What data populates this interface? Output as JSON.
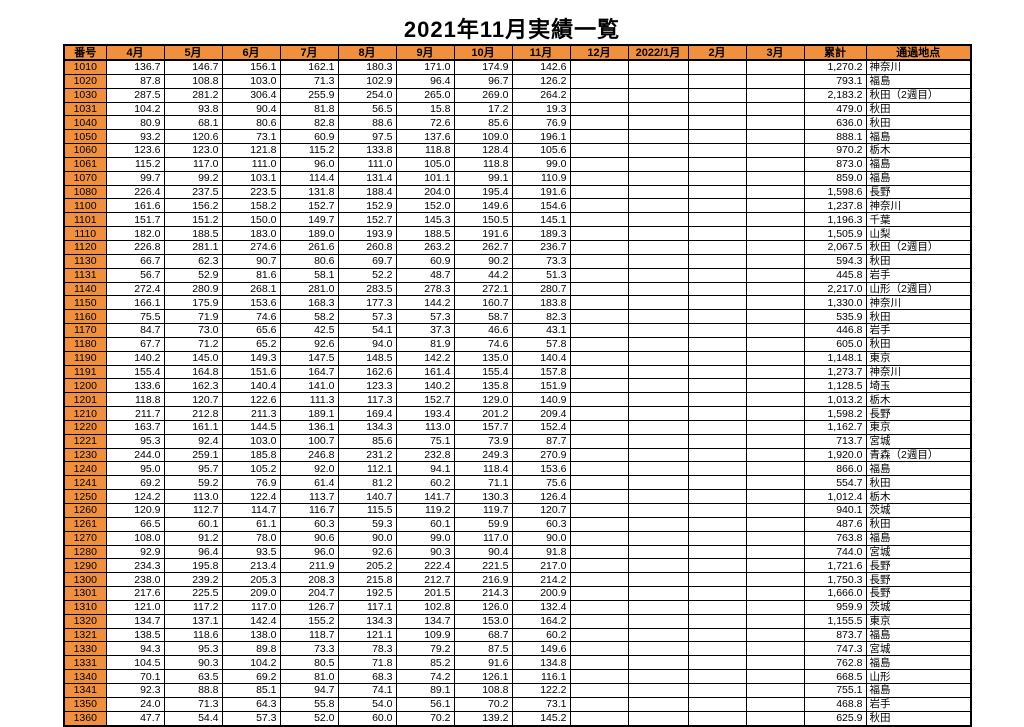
{
  "page_title": "2021年11月実績一覧",
  "colors": {
    "header_bg": "#f0903c",
    "grid_border": "#000000"
  },
  "table": {
    "columns": [
      "番号",
      "4月",
      "5月",
      "6月",
      "7月",
      "8月",
      "9月",
      "10月",
      "11月",
      "12月",
      "2022/1月",
      "2月",
      "3月",
      "累計",
      "通過地点"
    ],
    "rows": [
      {
        "no": "1010",
        "months": [
          "136.7",
          "146.7",
          "156.1",
          "162.1",
          "180.3",
          "171.0",
          "174.9",
          "142.6",
          "",
          "",
          "",
          ""
        ],
        "total": "1,270.2",
        "location": "神奈川"
      },
      {
        "no": "1020",
        "months": [
          "87.8",
          "108.8",
          "103.0",
          "71.3",
          "102.9",
          "96.4",
          "96.7",
          "126.2",
          "",
          "",
          "",
          ""
        ],
        "total": "793.1",
        "location": "福島"
      },
      {
        "no": "1030",
        "months": [
          "287.5",
          "281.2",
          "306.4",
          "255.9",
          "254.0",
          "265.0",
          "269.0",
          "264.2",
          "",
          "",
          "",
          ""
        ],
        "total": "2,183.2",
        "location": "秋田（2週目）"
      },
      {
        "no": "1031",
        "months": [
          "104.2",
          "93.8",
          "90.4",
          "81.8",
          "56.5",
          "15.8",
          "17.2",
          "19.3",
          "",
          "",
          "",
          ""
        ],
        "total": "479.0",
        "location": "秋田"
      },
      {
        "no": "1040",
        "months": [
          "80.9",
          "68.1",
          "80.6",
          "82.8",
          "88.6",
          "72.6",
          "85.6",
          "76.9",
          "",
          "",
          "",
          ""
        ],
        "total": "636.0",
        "location": "秋田"
      },
      {
        "no": "1050",
        "months": [
          "93.2",
          "120.6",
          "73.1",
          "60.9",
          "97.5",
          "137.6",
          "109.0",
          "196.1",
          "",
          "",
          "",
          ""
        ],
        "total": "888.1",
        "location": "福島"
      },
      {
        "no": "1060",
        "months": [
          "123.6",
          "123.0",
          "121.8",
          "115.2",
          "133.8",
          "118.8",
          "128.4",
          "105.6",
          "",
          "",
          "",
          ""
        ],
        "total": "970.2",
        "location": "栃木"
      },
      {
        "no": "1061",
        "months": [
          "115.2",
          "117.0",
          "111.0",
          "96.0",
          "111.0",
          "105.0",
          "118.8",
          "99.0",
          "",
          "",
          "",
          ""
        ],
        "total": "873.0",
        "location": "福島"
      },
      {
        "no": "1070",
        "months": [
          "99.7",
          "99.2",
          "103.1",
          "114.4",
          "131.4",
          "101.1",
          "99.1",
          "110.9",
          "",
          "",
          "",
          ""
        ],
        "total": "859.0",
        "location": "福島"
      },
      {
        "no": "1080",
        "months": [
          "226.4",
          "237.5",
          "223.5",
          "131.8",
          "188.4",
          "204.0",
          "195.4",
          "191.6",
          "",
          "",
          "",
          ""
        ],
        "total": "1,598.6",
        "location": "長野"
      },
      {
        "no": "1100",
        "months": [
          "161.6",
          "156.2",
          "158.2",
          "152.7",
          "152.9",
          "152.0",
          "149.6",
          "154.6",
          "",
          "",
          "",
          ""
        ],
        "total": "1,237.8",
        "location": "神奈川"
      },
      {
        "no": "1101",
        "months": [
          "151.7",
          "151.2",
          "150.0",
          "149.7",
          "152.7",
          "145.3",
          "150.5",
          "145.1",
          "",
          "",
          "",
          ""
        ],
        "total": "1,196.3",
        "location": "千葉"
      },
      {
        "no": "1110",
        "months": [
          "182.0",
          "188.5",
          "183.0",
          "189.0",
          "193.9",
          "188.5",
          "191.6",
          "189.3",
          "",
          "",
          "",
          ""
        ],
        "total": "1,505.9",
        "location": "山梨"
      },
      {
        "no": "1120",
        "months": [
          "226.8",
          "281.1",
          "274.6",
          "261.6",
          "260.8",
          "263.2",
          "262.7",
          "236.7",
          "",
          "",
          "",
          ""
        ],
        "total": "2,067.5",
        "location": "秋田（2週目）"
      },
      {
        "no": "1130",
        "months": [
          "66.7",
          "62.3",
          "90.7",
          "80.6",
          "69.7",
          "60.9",
          "90.2",
          "73.3",
          "",
          "",
          "",
          ""
        ],
        "total": "594.3",
        "location": "秋田"
      },
      {
        "no": "1131",
        "months": [
          "56.7",
          "52.9",
          "81.6",
          "58.1",
          "52.2",
          "48.7",
          "44.2",
          "51.3",
          "",
          "",
          "",
          ""
        ],
        "total": "445.8",
        "location": "岩手"
      },
      {
        "no": "1140",
        "months": [
          "272.4",
          "280.9",
          "268.1",
          "281.0",
          "283.5",
          "278.3",
          "272.1",
          "280.7",
          "",
          "",
          "",
          ""
        ],
        "total": "2,217.0",
        "location": "山形（2週目）"
      },
      {
        "no": "1150",
        "months": [
          "166.1",
          "175.9",
          "153.6",
          "168.3",
          "177.3",
          "144.2",
          "160.7",
          "183.8",
          "",
          "",
          "",
          ""
        ],
        "total": "1,330.0",
        "location": "神奈川"
      },
      {
        "no": "1160",
        "months": [
          "75.5",
          "71.9",
          "74.6",
          "58.2",
          "57.3",
          "57.3",
          "58.7",
          "82.3",
          "",
          "",
          "",
          ""
        ],
        "total": "535.9",
        "location": "秋田"
      },
      {
        "no": "1170",
        "months": [
          "84.7",
          "73.0",
          "65.6",
          "42.5",
          "54.1",
          "37.3",
          "46.6",
          "43.1",
          "",
          "",
          "",
          ""
        ],
        "total": "446.8",
        "location": "岩手"
      },
      {
        "no": "1180",
        "months": [
          "67.7",
          "71.2",
          "65.2",
          "92.6",
          "94.0",
          "81.9",
          "74.6",
          "57.8",
          "",
          "",
          "",
          ""
        ],
        "total": "605.0",
        "location": "秋田"
      },
      {
        "no": "1190",
        "months": [
          "140.2",
          "145.0",
          "149.3",
          "147.5",
          "148.5",
          "142.2",
          "135.0",
          "140.4",
          "",
          "",
          "",
          ""
        ],
        "total": "1,148.1",
        "location": "東京"
      },
      {
        "no": "1191",
        "months": [
          "155.4",
          "164.8",
          "151.6",
          "164.7",
          "162.6",
          "161.4",
          "155.4",
          "157.8",
          "",
          "",
          "",
          ""
        ],
        "total": "1,273.7",
        "location": "神奈川"
      },
      {
        "no": "1200",
        "months": [
          "133.6",
          "162.3",
          "140.4",
          "141.0",
          "123.3",
          "140.2",
          "135.8",
          "151.9",
          "",
          "",
          "",
          ""
        ],
        "total": "1,128.5",
        "location": "埼玉"
      },
      {
        "no": "1201",
        "months": [
          "118.8",
          "120.7",
          "122.6",
          "111.3",
          "117.3",
          "152.7",
          "129.0",
          "140.9",
          "",
          "",
          "",
          ""
        ],
        "total": "1,013.2",
        "location": "栃木"
      },
      {
        "no": "1210",
        "months": [
          "211.7",
          "212.8",
          "211.3",
          "189.1",
          "169.4",
          "193.4",
          "201.2",
          "209.4",
          "",
          "",
          "",
          ""
        ],
        "total": "1,598.2",
        "location": "長野"
      },
      {
        "no": "1220",
        "months": [
          "163.7",
          "161.1",
          "144.5",
          "136.1",
          "134.3",
          "113.0",
          "157.7",
          "152.4",
          "",
          "",
          "",
          ""
        ],
        "total": "1,162.7",
        "location": "東京"
      },
      {
        "no": "1221",
        "months": [
          "95.3",
          "92.4",
          "103.0",
          "100.7",
          "85.6",
          "75.1",
          "73.9",
          "87.7",
          "",
          "",
          "",
          ""
        ],
        "total": "713.7",
        "location": "宮城"
      },
      {
        "no": "1230",
        "months": [
          "244.0",
          "259.1",
          "185.8",
          "246.8",
          "231.2",
          "232.8",
          "249.3",
          "270.9",
          "",
          "",
          "",
          ""
        ],
        "total": "1,920.0",
        "location": "青森（2週目）"
      },
      {
        "no": "1240",
        "months": [
          "95.0",
          "95.7",
          "105.2",
          "92.0",
          "112.1",
          "94.1",
          "118.4",
          "153.6",
          "",
          "",
          "",
          ""
        ],
        "total": "866.0",
        "location": "福島"
      },
      {
        "no": "1241",
        "months": [
          "69.2",
          "59.2",
          "76.9",
          "61.4",
          "81.2",
          "60.2",
          "71.1",
          "75.6",
          "",
          "",
          "",
          ""
        ],
        "total": "554.7",
        "location": "秋田"
      },
      {
        "no": "1250",
        "months": [
          "124.2",
          "113.0",
          "122.4",
          "113.7",
          "140.7",
          "141.7",
          "130.3",
          "126.4",
          "",
          "",
          "",
          ""
        ],
        "total": "1,012.4",
        "location": "栃木"
      },
      {
        "no": "1260",
        "months": [
          "120.9",
          "112.7",
          "114.7",
          "116.7",
          "115.5",
          "119.2",
          "119.7",
          "120.7",
          "",
          "",
          "",
          ""
        ],
        "total": "940.1",
        "location": "茨城"
      },
      {
        "no": "1261",
        "months": [
          "66.5",
          "60.1",
          "61.1",
          "60.3",
          "59.3",
          "60.1",
          "59.9",
          "60.3",
          "",
          "",
          "",
          ""
        ],
        "total": "487.6",
        "location": "秋田"
      },
      {
        "no": "1270",
        "months": [
          "108.0",
          "91.2",
          "78.0",
          "90.6",
          "90.0",
          "99.0",
          "117.0",
          "90.0",
          "",
          "",
          "",
          ""
        ],
        "total": "763.8",
        "location": "福島"
      },
      {
        "no": "1280",
        "months": [
          "92.9",
          "96.4",
          "93.5",
          "96.0",
          "92.6",
          "90.3",
          "90.4",
          "91.8",
          "",
          "",
          "",
          ""
        ],
        "total": "744.0",
        "location": "宮城"
      },
      {
        "no": "1290",
        "months": [
          "234.3",
          "195.8",
          "213.4",
          "211.9",
          "205.2",
          "222.4",
          "221.5",
          "217.0",
          "",
          "",
          "",
          ""
        ],
        "total": "1,721.6",
        "location": "長野"
      },
      {
        "no": "1300",
        "months": [
          "238.0",
          "239.2",
          "205.3",
          "208.3",
          "215.8",
          "212.7",
          "216.9",
          "214.2",
          "",
          "",
          "",
          ""
        ],
        "total": "1,750.3",
        "location": "長野"
      },
      {
        "no": "1301",
        "months": [
          "217.6",
          "225.5",
          "209.0",
          "204.7",
          "192.5",
          "201.5",
          "214.3",
          "200.9",
          "",
          "",
          "",
          ""
        ],
        "total": "1,666.0",
        "location": "長野"
      },
      {
        "no": "1310",
        "months": [
          "121.0",
          "117.2",
          "117.0",
          "126.7",
          "117.1",
          "102.8",
          "126.0",
          "132.4",
          "",
          "",
          "",
          ""
        ],
        "total": "959.9",
        "location": "茨城"
      },
      {
        "no": "1320",
        "months": [
          "134.7",
          "137.1",
          "142.4",
          "155.2",
          "134.3",
          "134.7",
          "153.0",
          "164.2",
          "",
          "",
          "",
          ""
        ],
        "total": "1,155.5",
        "location": "東京"
      },
      {
        "no": "1321",
        "months": [
          "138.5",
          "118.6",
          "138.0",
          "118.7",
          "121.1",
          "109.9",
          "68.7",
          "60.2",
          "",
          "",
          "",
          ""
        ],
        "total": "873.7",
        "location": "福島"
      },
      {
        "no": "1330",
        "months": [
          "94.3",
          "95.3",
          "89.8",
          "73.3",
          "78.3",
          "79.2",
          "87.5",
          "149.6",
          "",
          "",
          "",
          ""
        ],
        "total": "747.3",
        "location": "宮城"
      },
      {
        "no": "1331",
        "months": [
          "104.5",
          "90.3",
          "104.2",
          "80.5",
          "71.8",
          "85.2",
          "91.6",
          "134.8",
          "",
          "",
          "",
          ""
        ],
        "total": "762.8",
        "location": "福島"
      },
      {
        "no": "1340",
        "months": [
          "70.1",
          "63.5",
          "69.2",
          "81.0",
          "68.3",
          "74.2",
          "126.1",
          "116.1",
          "",
          "",
          "",
          ""
        ],
        "total": "668.5",
        "location": "山形"
      },
      {
        "no": "1341",
        "months": [
          "92.3",
          "88.8",
          "85.1",
          "94.7",
          "74.1",
          "89.1",
          "108.8",
          "122.2",
          "",
          "",
          "",
          ""
        ],
        "total": "755.1",
        "location": "福島"
      },
      {
        "no": "1350",
        "months": [
          "24.0",
          "71.3",
          "64.3",
          "55.8",
          "54.0",
          "56.1",
          "70.2",
          "73.1",
          "",
          "",
          "",
          ""
        ],
        "total": "468.8",
        "location": "岩手"
      },
      {
        "no": "1360",
        "months": [
          "47.7",
          "54.4",
          "57.3",
          "52.0",
          "60.0",
          "70.2",
          "139.2",
          "145.2",
          "",
          "",
          "",
          ""
        ],
        "total": "625.9",
        "location": "秋田"
      }
    ]
  }
}
